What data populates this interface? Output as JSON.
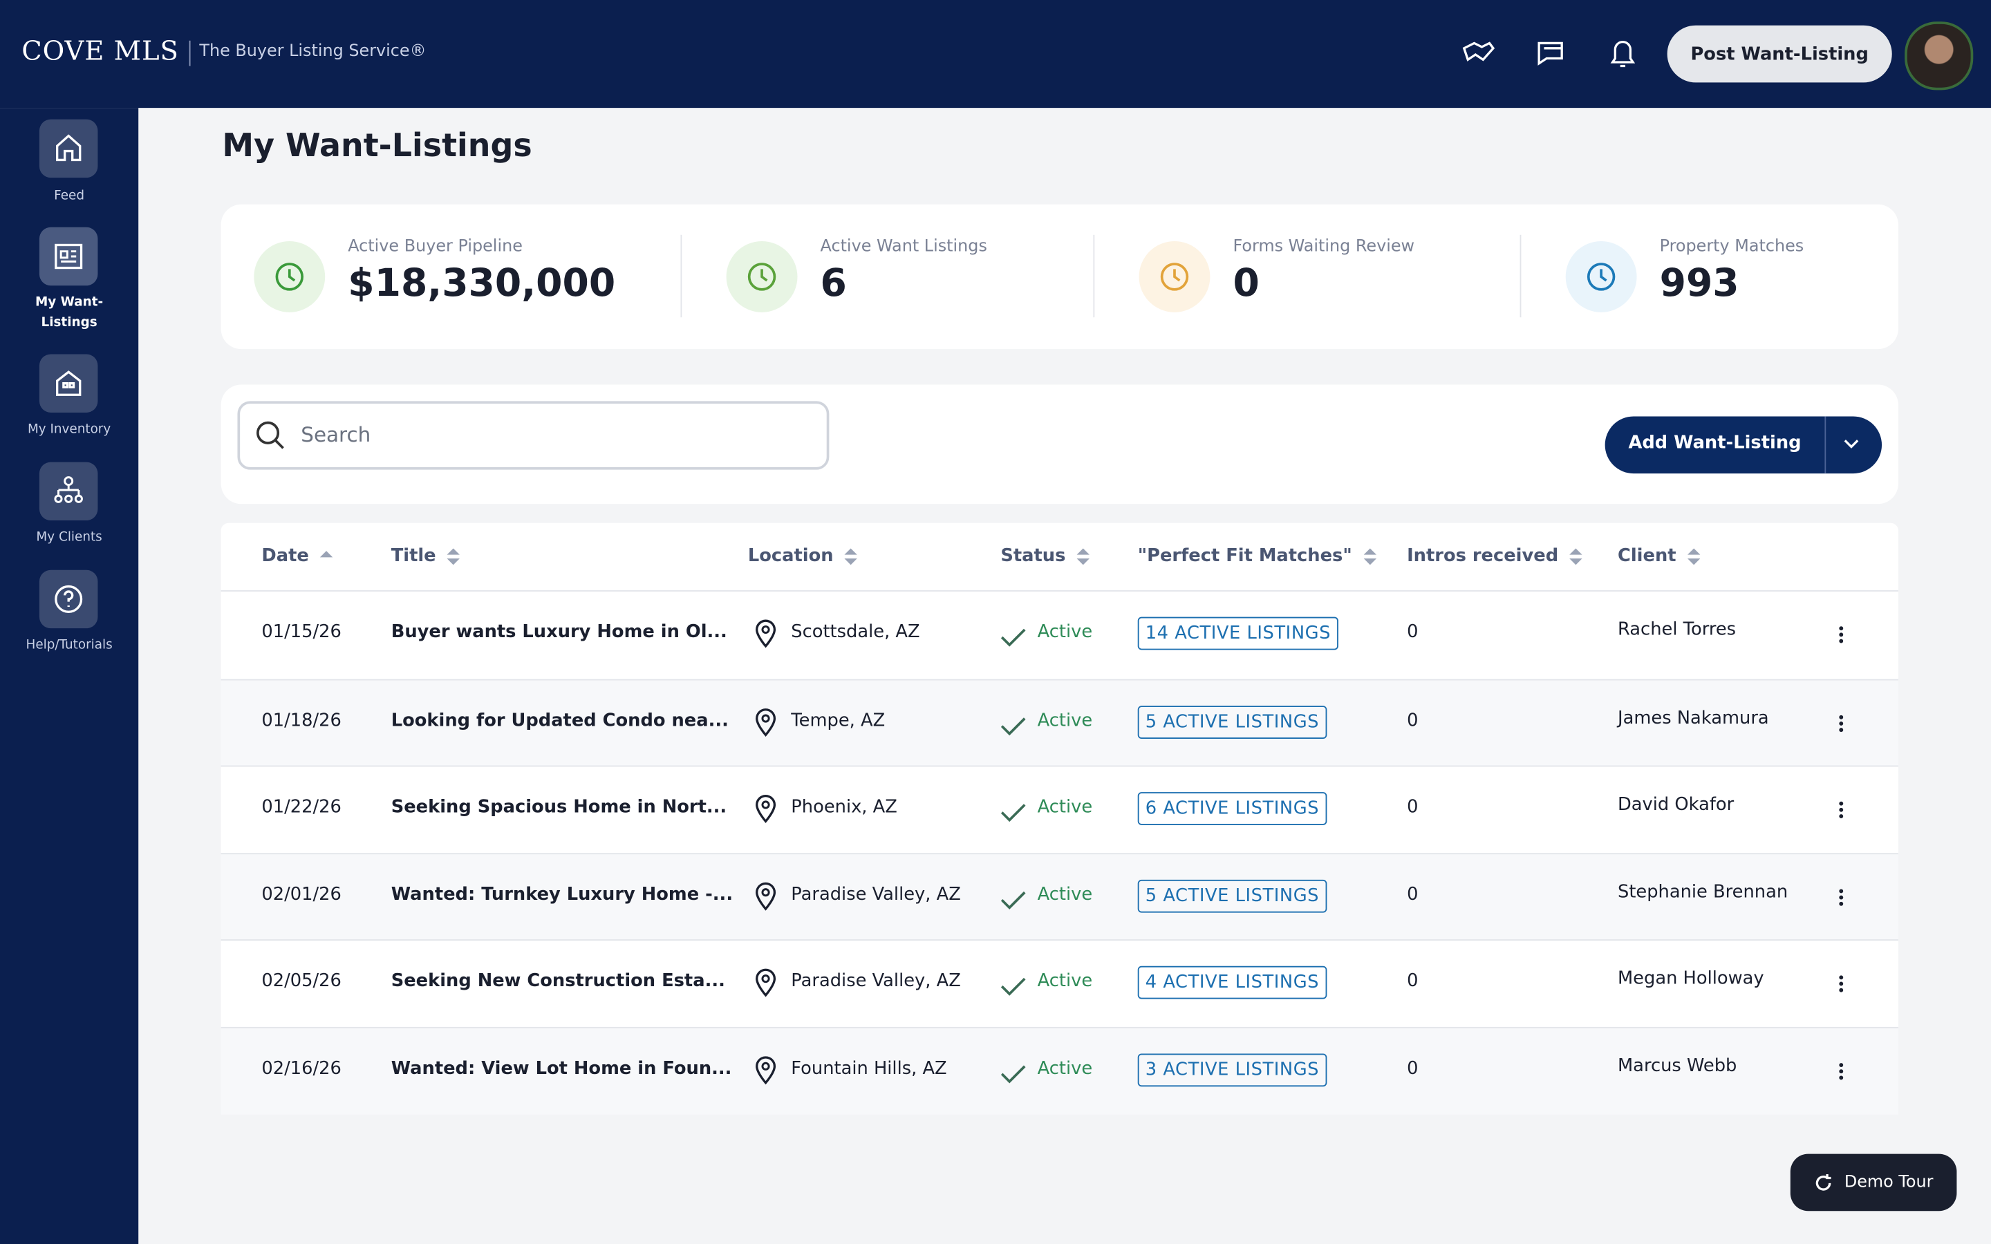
{
  "header": {
    "brand": "COVE MLS",
    "tagline": "The Buyer Listing Service®",
    "post_button": "Post Want-Listing"
  },
  "sidebar": [
    {
      "label": "Feed"
    },
    {
      "label": "My Want-Listings"
    },
    {
      "label": "My Inventory"
    },
    {
      "label": "My Clients"
    },
    {
      "label": "Help/Tutorials"
    }
  ],
  "page_title": "My Want-Listings",
  "stats": [
    {
      "label": "Active Buyer Pipeline",
      "value": "$18,330,000"
    },
    {
      "label": "Active Want Listings",
      "value": 6
    },
    {
      "label": "Forms Waiting Review",
      "value": 0
    },
    {
      "label": "Property Matches",
      "value": 993
    }
  ],
  "search_placeholder": "Search",
  "add_button": "Add Want-Listing",
  "table": {
    "columns": [
      "Date",
      "Title",
      "Location",
      "Status",
      "\"Perfect Fit Matches\"",
      "Intros received",
      "Client"
    ],
    "rows": [
      [
        "01/15/26",
        "Buyer wants Luxury Home in Ol...",
        "Scottsdale, AZ",
        "Active",
        "14 ACTIVE LISTINGS",
        0,
        "Rachel Torres"
      ],
      [
        "01/18/26",
        "Looking for Updated Condo nea...",
        "Tempe, AZ",
        "Active",
        "5 ACTIVE LISTINGS",
        0,
        "James Nakamura"
      ],
      [
        "01/22/26",
        "Seeking Spacious Home in Nort...",
        "Phoenix, AZ",
        "Active",
        "6 ACTIVE LISTINGS",
        0,
        "David Okafor"
      ],
      [
        "02/01/26",
        "Wanted: Turnkey Luxury Home -...",
        "Paradise Valley, AZ",
        "Active",
        "5 ACTIVE LISTINGS",
        0,
        "Stephanie Brennan"
      ],
      [
        "02/05/26",
        "Seeking New Construction Esta...",
        "Paradise Valley, AZ",
        "Active",
        "4 ACTIVE LISTINGS",
        0,
        "Megan Holloway"
      ],
      [
        "02/16/26",
        "Wanted: View Lot Home in Foun...",
        "Fountain Hills, AZ",
        "Active",
        "3 ACTIVE LISTINGS",
        0,
        "Marcus Webb"
      ]
    ]
  },
  "demo_tour": "Demo Tour"
}
